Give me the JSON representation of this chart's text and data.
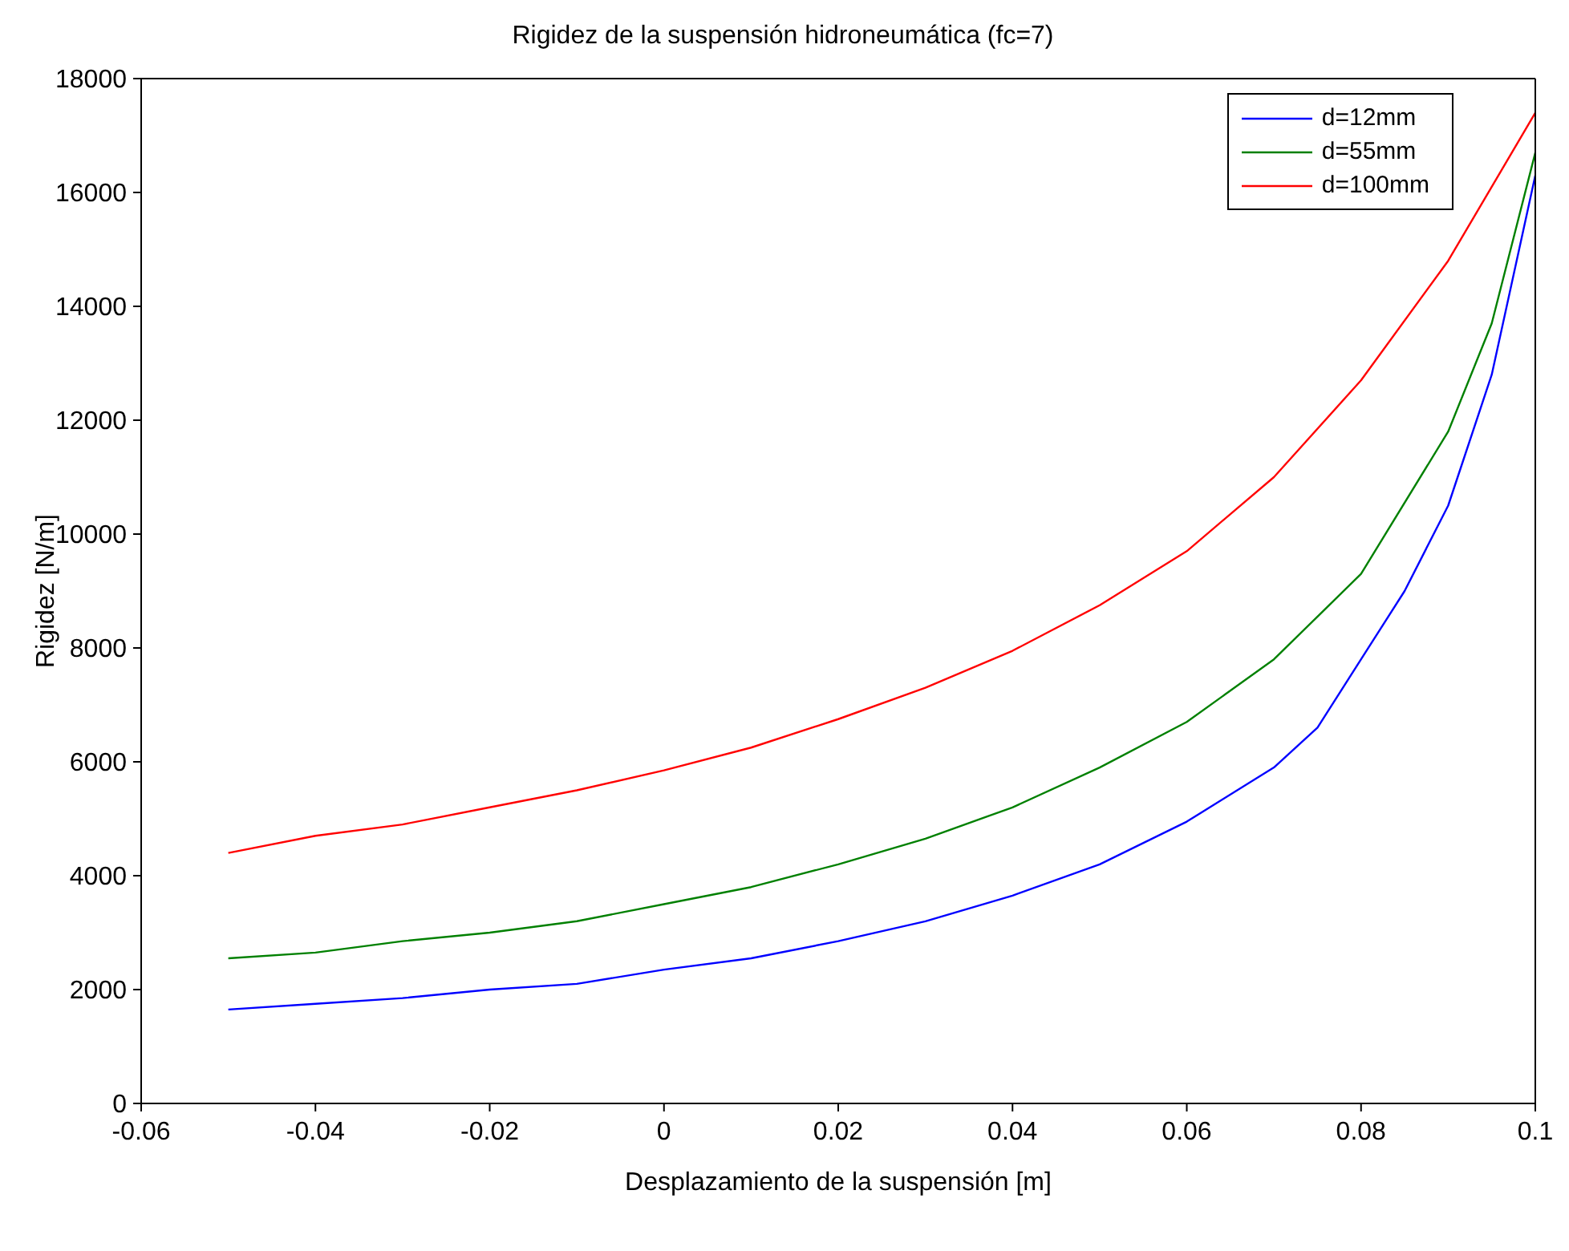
{
  "chart_data": {
    "type": "line",
    "title": "Rigidez de la suspensión hidroneumática (fc=7)",
    "xlabel": "Desplazamiento de la suspensión [m]",
    "ylabel": "Rigidez [N/m]",
    "xlim": [
      -0.06,
      0.1
    ],
    "xticks": [
      -0.06,
      -0.04,
      -0.02,
      0,
      0.02,
      0.04,
      0.06,
      0.08,
      0.1
    ],
    "ylim": [
      0,
      18000
    ],
    "yticks": [
      0,
      2000,
      4000,
      6000,
      8000,
      10000,
      12000,
      14000,
      16000,
      18000
    ],
    "legend": "top right",
    "marker": "none",
    "line_style": "solid",
    "series": [
      {
        "name": "d=12mm",
        "color": "#0000ff",
        "x": [
          -0.05,
          -0.04,
          -0.03,
          -0.02,
          -0.01,
          0,
          0.01,
          0.02,
          0.03,
          0.04,
          0.05,
          0.06,
          0.07,
          0.075,
          0.08,
          0.085,
          0.09,
          0.095,
          0.1
        ],
        "values": [
          1650,
          1750,
          1850,
          2000,
          2100,
          2350,
          2550,
          2850,
          3200,
          3650,
          4200,
          4950,
          5900,
          6600,
          7800,
          9000,
          10500,
          12800,
          16300
        ]
      },
      {
        "name": "d=55mm",
        "color": "#008000",
        "x": [
          -0.05,
          -0.04,
          -0.03,
          -0.02,
          -0.01,
          0,
          0.01,
          0.02,
          0.03,
          0.04,
          0.05,
          0.06,
          0.07,
          0.08,
          0.09,
          0.095,
          0.1
        ],
        "values": [
          2550,
          2650,
          2850,
          3000,
          3200,
          3500,
          3800,
          4200,
          4650,
          5200,
          5900,
          6700,
          7800,
          9300,
          11800,
          13700,
          16700
        ]
      },
      {
        "name": "d=100mm",
        "color": "#ff0000",
        "x": [
          -0.05,
          -0.04,
          -0.03,
          -0.02,
          -0.01,
          0,
          0.01,
          0.02,
          0.03,
          0.04,
          0.05,
          0.06,
          0.07,
          0.08,
          0.09,
          0.1
        ],
        "values": [
          4400,
          4700,
          4900,
          5200,
          5500,
          5850,
          6250,
          6750,
          7300,
          7950,
          8750,
          9700,
          11000,
          12700,
          14800,
          17400
        ]
      }
    ]
  }
}
